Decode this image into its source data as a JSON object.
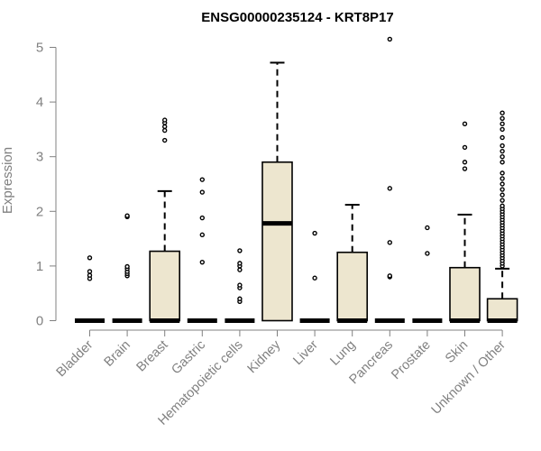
{
  "chart_data": {
    "type": "boxplot",
    "title": "ENSG00000235124 - KRT8P17",
    "ylabel": "Expression",
    "xlabel": "",
    "ylim": [
      0,
      5.2
    ],
    "yticks": [
      0,
      1,
      2,
      3,
      4,
      5
    ],
    "grid": false,
    "box_fill": "#EDE6CF",
    "box_stroke": "#000000",
    "axis_color": "#808080",
    "categories": [
      "Bladder",
      "Brain",
      "Breast",
      "Gastric",
      "Hematopoietic cells",
      "Kidney",
      "Liver",
      "Lung",
      "Pancreas",
      "Prostate",
      "Skin",
      "Unknown / Other"
    ],
    "boxes": [
      {
        "name": "Bladder",
        "q1": 0,
        "median": 0,
        "q3": 0,
        "whisker_low": 0,
        "whisker_high": 0,
        "outliers": [
          0.77,
          0.83,
          0.9,
          1.15
        ]
      },
      {
        "name": "Brain",
        "q1": 0,
        "median": 0,
        "q3": 0,
        "whisker_low": 0,
        "whisker_high": 0,
        "outliers": [
          0.82,
          0.86,
          0.9,
          0.95,
          0.99,
          1.9,
          1.92
        ]
      },
      {
        "name": "Breast",
        "q1": 0,
        "median": 0,
        "q3": 1.27,
        "whisker_low": 0,
        "whisker_high": 2.37,
        "outliers": [
          3.3,
          3.48,
          3.55,
          3.62,
          3.67
        ]
      },
      {
        "name": "Gastric",
        "q1": 0,
        "median": 0,
        "q3": 0,
        "whisker_low": 0,
        "whisker_high": 0,
        "outliers": [
          1.07,
          1.57,
          1.88,
          2.35,
          2.58
        ]
      },
      {
        "name": "Hematopoietic cells",
        "q1": 0,
        "median": 0,
        "q3": 0,
        "whisker_low": 0,
        "whisker_high": 0,
        "outliers": [
          0.35,
          0.4,
          0.6,
          0.65,
          0.93,
          1.0,
          1.05,
          1.28
        ]
      },
      {
        "name": "Kidney",
        "q1": 0,
        "median": 1.78,
        "q3": 2.9,
        "whisker_low": 0,
        "whisker_high": 4.72,
        "outliers": []
      },
      {
        "name": "Liver",
        "q1": 0,
        "median": 0,
        "q3": 0,
        "whisker_low": 0,
        "whisker_high": 0,
        "outliers": [
          0.78,
          1.6
        ]
      },
      {
        "name": "Lung",
        "q1": 0,
        "median": 0,
        "q3": 1.25,
        "whisker_low": 0,
        "whisker_high": 2.12,
        "outliers": []
      },
      {
        "name": "Pancreas",
        "q1": 0,
        "median": 0,
        "q3": 0,
        "whisker_low": 0,
        "whisker_high": 0,
        "outliers": [
          0.8,
          0.82,
          1.43,
          2.42,
          5.15
        ]
      },
      {
        "name": "Prostate",
        "q1": 0,
        "median": 0,
        "q3": 0,
        "whisker_low": 0,
        "whisker_high": 0,
        "outliers": [
          1.23,
          1.7
        ]
      },
      {
        "name": "Skin",
        "q1": 0,
        "median": 0,
        "q3": 0.97,
        "whisker_low": 0,
        "whisker_high": 1.94,
        "outliers": [
          2.78,
          2.9,
          3.17,
          3.6
        ]
      },
      {
        "name": "Unknown / Other",
        "q1": 0,
        "median": 0,
        "q3": 0.4,
        "whisker_low": 0,
        "whisker_high": 0.95,
        "outliers": [
          1.0,
          1.05,
          1.1,
          1.15,
          1.2,
          1.25,
          1.3,
          1.35,
          1.4,
          1.45,
          1.5,
          1.55,
          1.6,
          1.65,
          1.7,
          1.75,
          1.8,
          1.85,
          1.9,
          1.95,
          2.0,
          2.05,
          2.1,
          2.2,
          2.3,
          2.4,
          2.5,
          2.6,
          2.7,
          2.9,
          3.0,
          3.1,
          3.2,
          3.35,
          3.5,
          3.6,
          3.7,
          3.8
        ]
      }
    ]
  }
}
